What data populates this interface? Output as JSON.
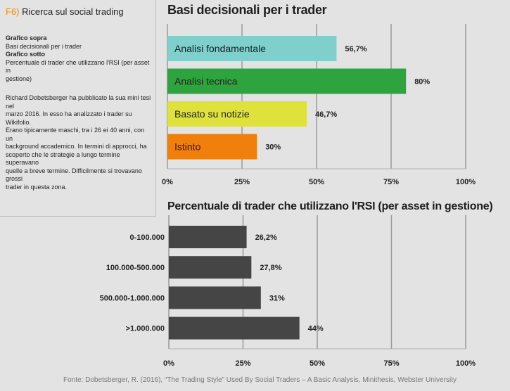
{
  "sidebar": {
    "fig_number": "F6)",
    "fig_title": "Ricerca sul social trading",
    "top_label": "Grafico sopra",
    "top_desc": "Basi decisionali per i trader",
    "bottom_label": "Grafico sotto",
    "bottom_desc_lines": [
      "Percentuale di trader che utilizzano l'RSI (per asset in",
      "gestione)"
    ],
    "body_lines": [
      "Richard Dobetsberger ha pubblicato la sua mini tesi nel",
      "marzo 2016. In esso ha analizzato i trader su Wikifolio.",
      "Erano tipicamente maschi, tra i 26 ei 40 anni, con un",
      "background accademico. In termini di approcci, ha",
      "scoperto che le strategie a lungo termine superavano",
      "quelle a breve termine. Difficilmente si trovavano grossi",
      "trader in questa zona."
    ]
  },
  "chart_data": [
    {
      "type": "bar",
      "orientation": "horizontal",
      "title": "Basi decisionali per i trader",
      "categories": [
        "Analisi fondamentale",
        "Analisi tecnica",
        "Basato su notizie",
        "Istinto"
      ],
      "values": [
        56.7,
        80,
        46.7,
        30
      ],
      "value_labels": [
        "56,7%",
        "80%",
        "46,7%",
        "30%"
      ],
      "colors": [
        "#7fcfcc",
        "#2ea43f",
        "#dfe23a",
        "#f07f0c"
      ],
      "xlim": [
        0,
        100
      ],
      "ticks": [
        0,
        25,
        50,
        75,
        100
      ],
      "tick_labels": [
        "0%",
        "25%",
        "50%",
        "75%",
        "100%"
      ],
      "grid": true
    },
    {
      "type": "bar",
      "orientation": "horizontal",
      "title": "Percentuale di trader che utilizzano l'RSI (per asset in gestione)",
      "categories": [
        "0-100.000",
        "100.000-500.000",
        "500.000-1.000.000",
        ">1.000.000"
      ],
      "values": [
        26.2,
        27.8,
        31,
        44
      ],
      "value_labels": [
        "26,2%",
        "27,8%",
        "31%",
        "44%"
      ],
      "colors": [
        "#454545"
      ],
      "xlim": [
        0,
        100
      ],
      "ticks": [
        0,
        25,
        50,
        75,
        100
      ],
      "tick_labels": [
        "0%",
        "25%",
        "50%",
        "75%",
        "100%"
      ],
      "grid": true
    }
  ],
  "source": "Fonte: Dobetsberger, R. (2016), “The Trading Style” Used By Social Traders – A Basic Analysis, Minithesis, Webster University"
}
